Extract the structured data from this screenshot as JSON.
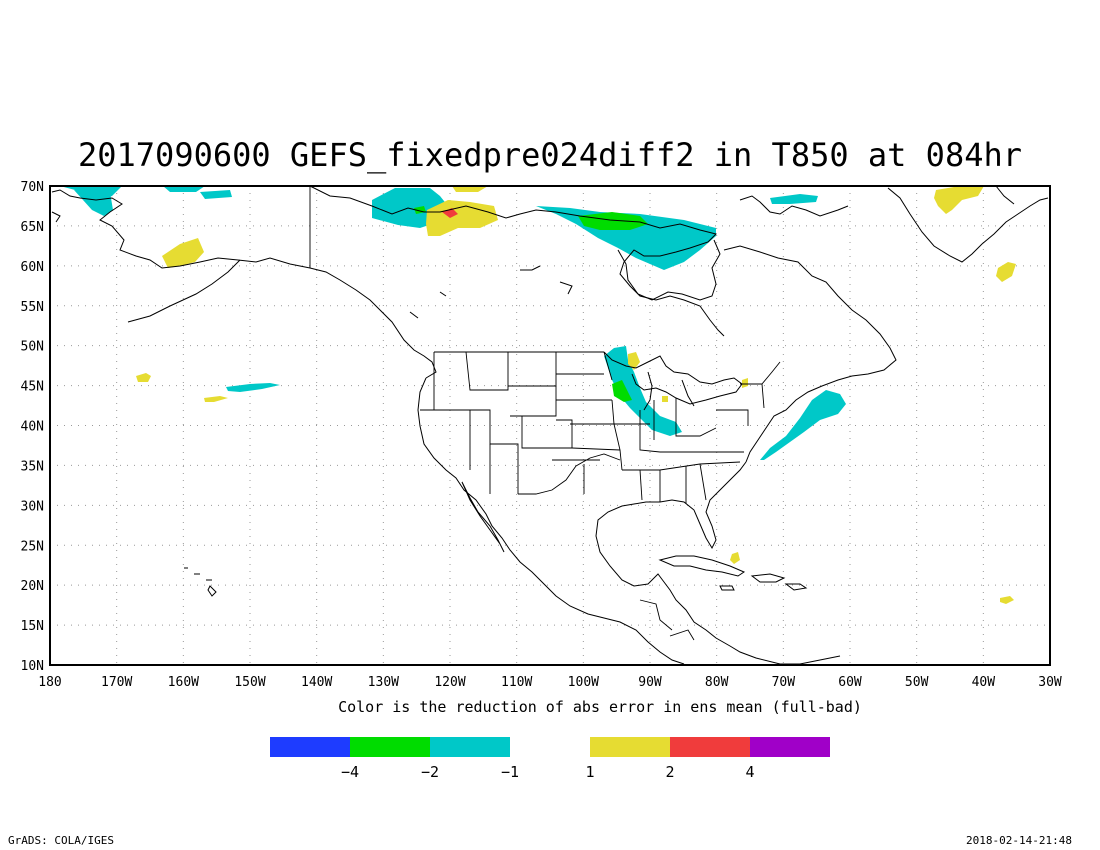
{
  "title": "2017090600 GEFS_fixedpre024diff2 in T850 at 084hr",
  "subtitle": "Color is the reduction of abs error in ens mean (full-bad)",
  "footer": {
    "left": "GrADS: COLA/IGES",
    "right": "2018-02-14-21:48"
  },
  "lat_labels": [
    "10N",
    "15N",
    "20N",
    "25N",
    "30N",
    "35N",
    "40N",
    "45N",
    "50N",
    "55N",
    "60N",
    "65N",
    "70N"
  ],
  "lon_labels": [
    "180",
    "170W",
    "160W",
    "150W",
    "140W",
    "130W",
    "120W",
    "110W",
    "100W",
    "90W",
    "80W",
    "70W",
    "60W",
    "50W",
    "40W",
    "30W"
  ],
  "colorbar": {
    "negative": [
      {
        "color": "#1e3cff"
      },
      {
        "color": "#00dc00"
      },
      {
        "color": "#00c8c8"
      }
    ],
    "positive": [
      {
        "color": "#e6dc32"
      },
      {
        "color": "#f03c3c"
      },
      {
        "color": "#a000c8"
      }
    ],
    "labels": [
      "−4",
      "−2",
      "−1",
      "1",
      "2",
      "4"
    ]
  },
  "colors": {
    "cyan": "#00c8c8",
    "green": "#00dc00",
    "yellow": "#e6dc32",
    "red": "#f03c3c"
  }
}
